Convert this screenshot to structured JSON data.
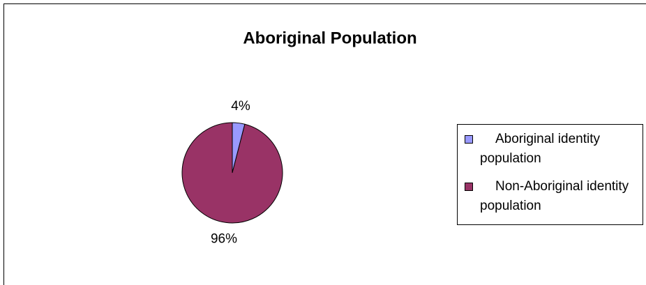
{
  "chart_data": {
    "type": "pie",
    "title": "Aboriginal Population",
    "categories": [
      "Aboriginal identity population",
      "Non-Aboriginal identity population"
    ],
    "values": [
      4,
      96
    ],
    "value_labels": [
      "4%",
      "96%"
    ],
    "colors": [
      "#9999ff",
      "#993366"
    ],
    "legend": "right"
  }
}
